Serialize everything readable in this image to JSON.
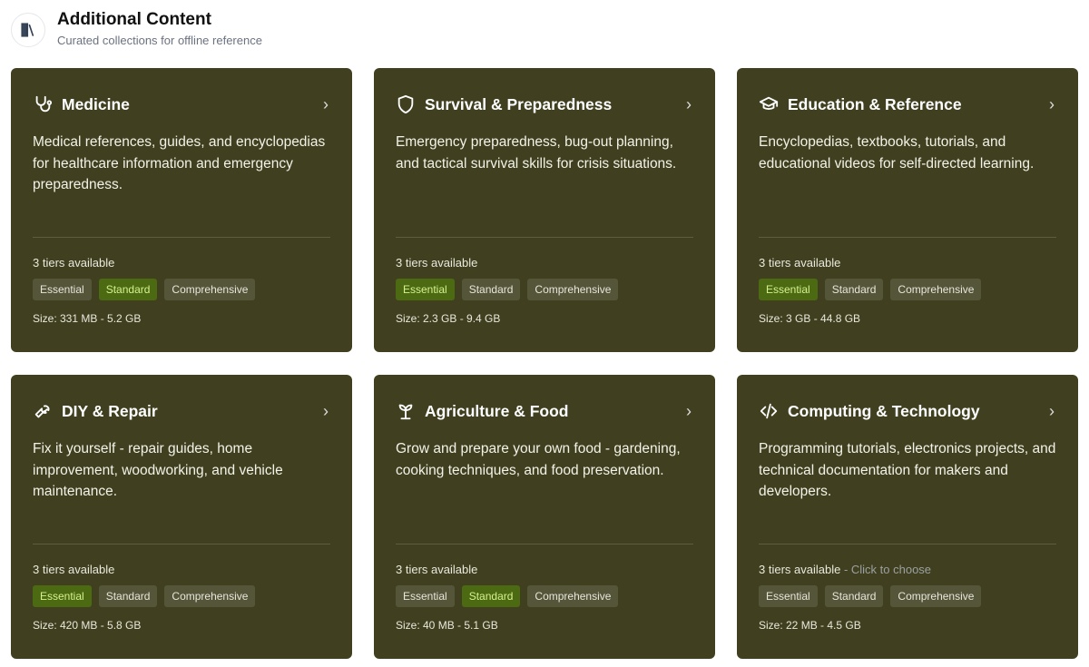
{
  "header": {
    "title": "Additional Content",
    "subtitle": "Curated collections for offline reference",
    "icon": "library-icon"
  },
  "cards": [
    {
      "icon": "stethoscope-icon",
      "title": "Medicine",
      "description": "Medical references, guides, and encyclopedias for healthcare information and emergency preparedness.",
      "tiers_text": "3 tiers available",
      "hint": "",
      "tiers": [
        "Essential",
        "Standard",
        "Comprehensive"
      ],
      "selected": "Standard",
      "size": "Size: 331 MB - 5.2 GB"
    },
    {
      "icon": "shield-icon",
      "title": "Survival & Preparedness",
      "description": "Emergency preparedness, bug-out planning, and tactical survival skills for crisis situations.",
      "tiers_text": "3 tiers available",
      "hint": "",
      "tiers": [
        "Essential",
        "Standard",
        "Comprehensive"
      ],
      "selected": "Essential",
      "size": "Size: 2.3 GB - 9.4 GB"
    },
    {
      "icon": "graduation-cap-icon",
      "title": "Education & Reference",
      "description": "Encyclopedias, textbooks, tutorials, and educational videos for self-directed learning.",
      "tiers_text": "3 tiers available",
      "hint": "",
      "tiers": [
        "Essential",
        "Standard",
        "Comprehensive"
      ],
      "selected": "Essential",
      "size": "Size: 3 GB - 44.8 GB"
    },
    {
      "icon": "wrench-icon",
      "title": "DIY & Repair",
      "description": "Fix it yourself - repair guides, home improvement, woodworking, and vehicle maintenance.",
      "tiers_text": "3 tiers available",
      "hint": "",
      "tiers": [
        "Essential",
        "Standard",
        "Comprehensive"
      ],
      "selected": "Essential",
      "size": "Size: 420 MB - 5.8 GB"
    },
    {
      "icon": "sprout-icon",
      "title": "Agriculture & Food",
      "description": "Grow and prepare your own food - gardening, cooking techniques, and food preservation.",
      "tiers_text": "3 tiers available",
      "hint": "",
      "tiers": [
        "Essential",
        "Standard",
        "Comprehensive"
      ],
      "selected": "Standard",
      "size": "Size: 40 MB - 5.1 GB"
    },
    {
      "icon": "code-icon",
      "title": "Computing & Technology",
      "description": "Programming tutorials, electronics projects, and technical documentation for makers and developers.",
      "tiers_text": "3 tiers available",
      "hint": " - Click to choose",
      "tiers": [
        "Essential",
        "Standard",
        "Comprehensive"
      ],
      "selected": null,
      "size": "Size: 22 MB - 4.5 GB"
    }
  ],
  "colors": {
    "card": "#404020",
    "selected_chip": "#4b6a12",
    "selected_text": "#d6f08e"
  }
}
